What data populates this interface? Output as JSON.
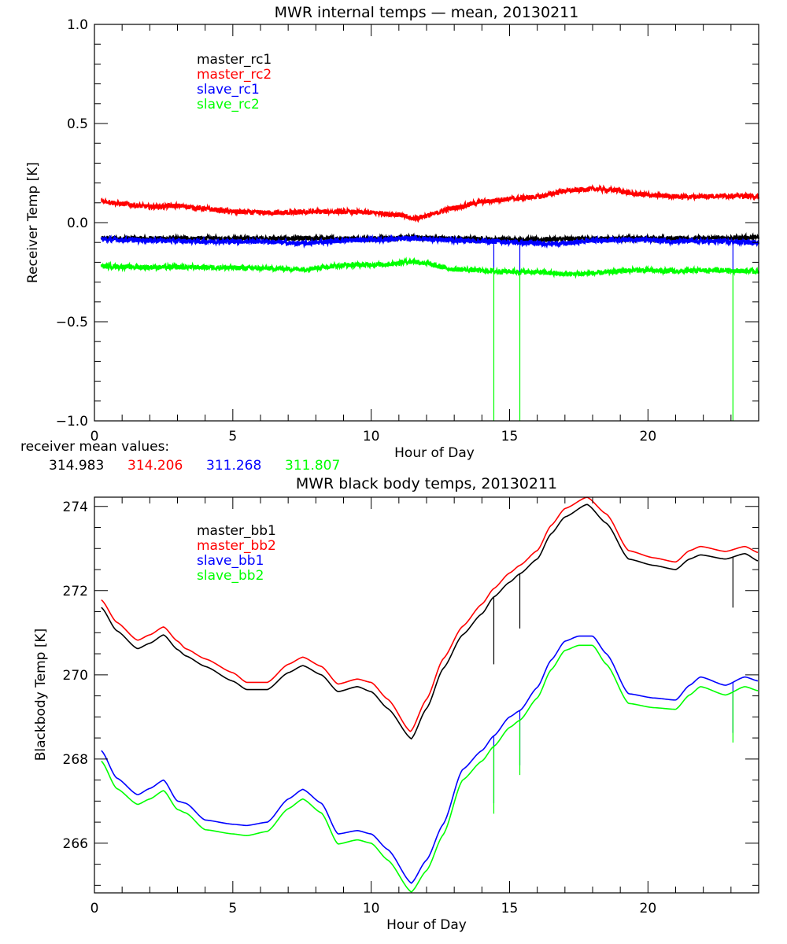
{
  "chart_data": [
    {
      "type": "line",
      "title": "MWR internal temps — mean, 20130211",
      "xlabel": "Hour of Day",
      "ylabel": "Receiver Temp [K]",
      "xlim": [
        0,
        24
      ],
      "ylim": [
        -1.0,
        1.0
      ],
      "xticks": [
        0,
        5,
        10,
        15,
        20
      ],
      "xtick_labels": [
        "0",
        "5",
        "10",
        "15",
        "20"
      ],
      "yticks": [
        1.0,
        0.5,
        0.0,
        -0.5,
        -1.0
      ],
      "ytick_labels": [
        "1.0",
        "0.5",
        "0.0",
        "−0.5",
        "−1.0"
      ],
      "grid": false,
      "legend": "top-left",
      "series": [
        {
          "name": "master_rc1",
          "color": "#000000",
          "x": [
            0.25,
            2,
            4,
            6,
            8,
            10,
            11.5,
            13,
            14.5,
            16,
            18,
            20,
            22,
            24
          ],
          "y": [
            -0.08,
            -0.08,
            -0.08,
            -0.08,
            -0.08,
            -0.08,
            -0.075,
            -0.08,
            -0.085,
            -0.085,
            -0.08,
            -0.08,
            -0.08,
            -0.075
          ],
          "spikes": []
        },
        {
          "name": "master_rc2",
          "color": "#ff0000",
          "x": [
            0.25,
            1,
            2,
            3,
            4,
            5,
            6,
            7,
            8,
            9,
            10,
            11,
            11.5,
            12,
            13,
            14,
            15,
            16,
            17,
            18,
            18.8,
            19.5,
            20.5,
            21.5,
            22.5,
            23.5,
            24
          ],
          "y": [
            0.11,
            0.095,
            0.08,
            0.085,
            0.07,
            0.055,
            0.05,
            0.05,
            0.055,
            0.055,
            0.05,
            0.04,
            0.02,
            0.035,
            0.075,
            0.105,
            0.12,
            0.13,
            0.16,
            0.17,
            0.165,
            0.145,
            0.135,
            0.13,
            0.135,
            0.135,
            0.13
          ],
          "spikes": []
        },
        {
          "name": "slave_rc1",
          "color": "#0000ff",
          "x": [
            0.25,
            2,
            4,
            6,
            7.5,
            9,
            10.5,
            11.5,
            13,
            14.5,
            16,
            17,
            18,
            19.5,
            21,
            22.5,
            24
          ],
          "y": [
            -0.085,
            -0.09,
            -0.095,
            -0.095,
            -0.105,
            -0.09,
            -0.085,
            -0.08,
            -0.09,
            -0.095,
            -0.105,
            -0.105,
            -0.09,
            -0.085,
            -0.095,
            -0.095,
            -0.1
          ],
          "spikes": [
            14.43,
            15.37,
            23.07
          ]
        },
        {
          "name": "slave_rc2",
          "color": "#00ff00",
          "x": [
            0.25,
            2,
            4,
            6,
            7.5,
            9,
            10.5,
            11.5,
            13,
            14.5,
            16,
            17,
            18,
            19.5,
            21,
            22.5,
            24
          ],
          "y": [
            -0.22,
            -0.225,
            -0.225,
            -0.23,
            -0.235,
            -0.215,
            -0.21,
            -0.195,
            -0.235,
            -0.245,
            -0.25,
            -0.26,
            -0.255,
            -0.24,
            -0.245,
            -0.24,
            -0.245
          ],
          "spikes": [
            14.43,
            15.37,
            23.07
          ]
        }
      ],
      "annotation": {
        "label": "receiver mean values:",
        "values": [
          {
            "text": "314.983",
            "color": "#000000"
          },
          {
            "text": "314.206",
            "color": "#ff0000"
          },
          {
            "text": "311.268",
            "color": "#0000ff"
          },
          {
            "text": "311.807",
            "color": "#00ff00"
          }
        ]
      }
    },
    {
      "type": "line",
      "title": "MWR black body temps, 20130211",
      "xlabel": "Hour of Day",
      "ylabel": "Blackbody Temp [K]",
      "xlim": [
        0,
        24
      ],
      "ylim": [
        264.82,
        274.22
      ],
      "xticks": [
        0,
        5,
        10,
        15,
        20
      ],
      "xtick_labels": [
        "0",
        "5",
        "10",
        "15",
        "20"
      ],
      "yticks": [
        274,
        272,
        270,
        268,
        266
      ],
      "ytick_labels": [
        "274",
        "272",
        "270",
        "268",
        "266"
      ],
      "grid": false,
      "legend": "top-left",
      "series": [
        {
          "name": "master_bb1",
          "color": "#000000",
          "x": [
            0.25,
            0.8,
            1.56,
            2.0,
            2.5,
            3.0,
            3.3,
            4.0,
            5.0,
            5.5,
            6.25,
            7.0,
            7.53,
            8.2,
            8.8,
            9.5,
            10.0,
            10.6,
            11.45,
            12.0,
            12.6,
            13.3,
            14.0,
            14.43,
            15.0,
            15.37,
            16.0,
            16.5,
            17.0,
            17.8,
            18.5,
            19.3,
            20.2,
            21.0,
            21.5,
            21.9,
            22.8,
            23.5,
            24.0
          ],
          "y": [
            271.6,
            271.05,
            270.62,
            270.75,
            270.95,
            270.6,
            270.45,
            270.2,
            269.85,
            269.65,
            269.65,
            270.05,
            270.22,
            270.0,
            269.6,
            269.72,
            269.6,
            269.2,
            268.48,
            269.2,
            270.15,
            270.95,
            271.45,
            271.85,
            272.2,
            272.4,
            272.75,
            273.35,
            273.75,
            274.05,
            273.6,
            272.75,
            272.6,
            272.5,
            272.75,
            272.85,
            272.75,
            272.88,
            272.7
          ],
          "spikes": [
            14.43,
            15.37,
            23.07
          ]
        },
        {
          "name": "master_bb2",
          "color": "#ff0000",
          "x": [
            0.25,
            0.8,
            1.56,
            2.0,
            2.5,
            3.0,
            3.3,
            4.0,
            5.0,
            5.5,
            6.25,
            7.0,
            7.53,
            8.2,
            8.8,
            9.5,
            10.0,
            10.6,
            11.42,
            12.0,
            12.6,
            13.3,
            14.0,
            14.43,
            15.0,
            15.37,
            16.0,
            16.5,
            17.0,
            17.8,
            18.5,
            19.3,
            20.2,
            21.0,
            21.5,
            21.9,
            22.8,
            23.5,
            24.0
          ],
          "y": [
            271.78,
            271.25,
            270.82,
            270.95,
            271.14,
            270.8,
            270.62,
            270.38,
            270.05,
            269.82,
            269.82,
            270.25,
            270.42,
            270.2,
            269.78,
            269.9,
            269.82,
            269.42,
            268.65,
            269.42,
            270.38,
            271.15,
            271.68,
            272.05,
            272.42,
            272.6,
            272.95,
            273.55,
            273.95,
            274.22,
            273.82,
            272.95,
            272.78,
            272.68,
            272.95,
            273.05,
            272.93,
            273.05,
            272.9
          ],
          "spikes": []
        },
        {
          "name": "slave_bb1",
          "color": "#0000ff",
          "x": [
            0.25,
            0.8,
            1.56,
            2.0,
            2.5,
            3.0,
            3.3,
            4.0,
            5.0,
            5.5,
            6.25,
            7.0,
            7.53,
            8.2,
            8.8,
            9.5,
            10.0,
            10.6,
            11.45,
            12.0,
            12.6,
            13.3,
            14.0,
            14.43,
            15.0,
            15.37,
            16.0,
            16.5,
            17.0,
            17.5,
            18.0,
            18.5,
            19.3,
            20.2,
            21.0,
            21.5,
            21.9,
            22.8,
            23.5,
            24.0
          ],
          "y": [
            268.2,
            267.55,
            267.15,
            267.3,
            267.5,
            267.0,
            266.95,
            266.55,
            266.45,
            266.42,
            266.5,
            267.05,
            267.28,
            266.95,
            266.22,
            266.3,
            266.22,
            265.85,
            265.05,
            265.6,
            266.45,
            267.75,
            268.2,
            268.55,
            269.0,
            269.15,
            269.7,
            270.35,
            270.8,
            270.92,
            270.92,
            270.5,
            269.55,
            269.45,
            269.4,
            269.75,
            269.95,
            269.75,
            269.95,
            269.85
          ],
          "spikes": [
            14.43,
            15.37,
            23.07
          ]
        },
        {
          "name": "slave_bb2",
          "color": "#00ff00",
          "x": [
            0.25,
            0.8,
            1.56,
            2.0,
            2.5,
            3.0,
            3.3,
            4.0,
            5.0,
            5.5,
            6.25,
            7.0,
            7.53,
            8.2,
            8.8,
            9.5,
            10.0,
            10.6,
            11.45,
            12.0,
            12.6,
            13.3,
            14.0,
            14.43,
            15.0,
            15.37,
            16.0,
            16.5,
            17.0,
            17.5,
            18.0,
            18.5,
            19.3,
            20.2,
            21.0,
            21.5,
            21.9,
            22.8,
            23.5,
            24.0
          ],
          "y": [
            267.95,
            267.3,
            266.92,
            267.05,
            267.25,
            266.8,
            266.72,
            266.32,
            266.22,
            266.18,
            266.28,
            266.82,
            267.05,
            266.72,
            265.98,
            266.08,
            266.0,
            265.6,
            264.84,
            265.35,
            266.2,
            267.5,
            267.95,
            268.3,
            268.75,
            268.92,
            269.45,
            270.12,
            270.58,
            270.7,
            270.7,
            270.25,
            269.32,
            269.22,
            269.18,
            269.52,
            269.72,
            269.52,
            269.72,
            269.62
          ],
          "spikes": [
            14.43,
            15.37,
            23.07
          ]
        }
      ]
    }
  ]
}
